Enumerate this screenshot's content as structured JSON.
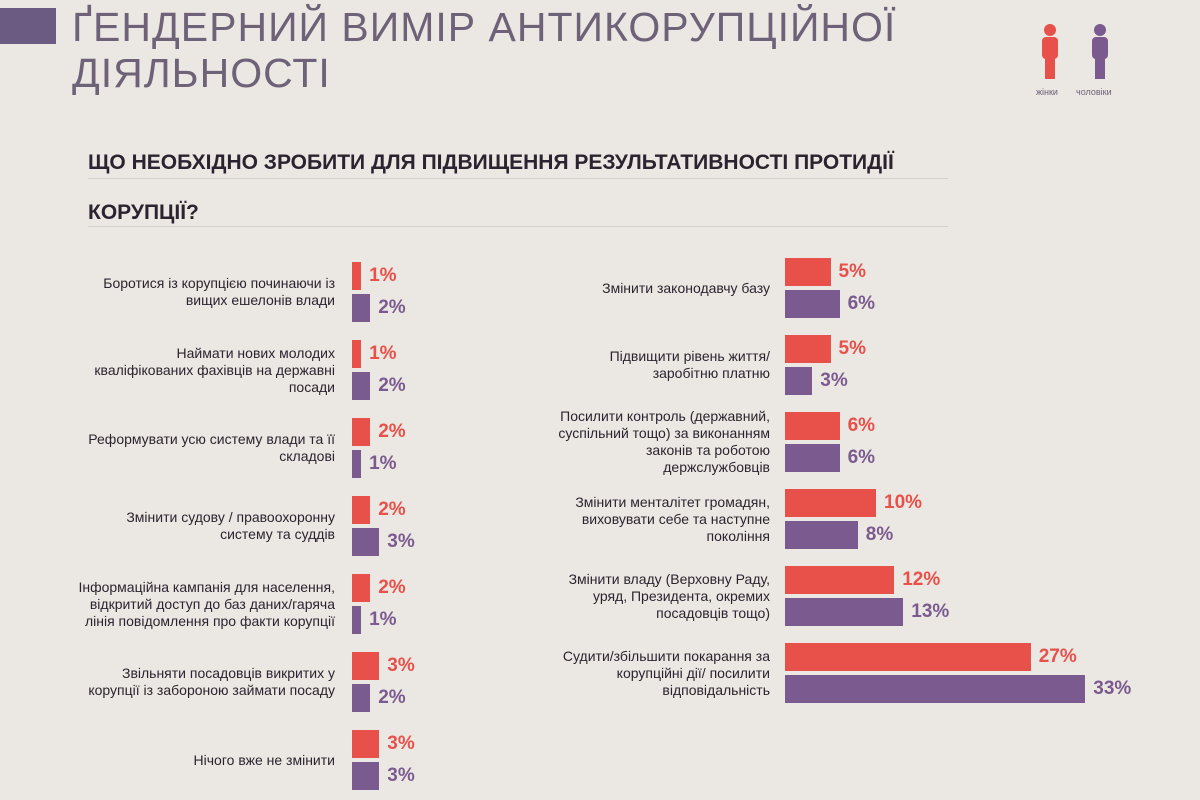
{
  "title": "ҐЕНДЕРНИЙ ВИМІР АНТИКОРУПЦІЙНОЇ ДІЯЛЬНОСТІ",
  "question": "ЩО НЕОБХІДНО ЗРОБИТИ ДЛЯ ПІДВИЩЕННЯ РЕЗУЛЬТАТИВНОСТІ ПРОТИДІЇ КОРУПЦІЇ?",
  "chart_data": [
    {
      "type": "bar",
      "orientation": "horizontal",
      "categories": [
        "Боротися із корупцією починаючи із вищих ешелонів влади",
        "Наймати нових молодих кваліфікованих фахівців на державні посади",
        "Реформувати усю систему влади та її складові",
        "Змінити судову / правоохоронну систему та суддів",
        "Інформаційна кампанія для населення, відкритий доступ до баз даних/гаряча лінія повідомлення про факти корупції",
        "Звільняти посадовців викритих у корупції із забороною займати посаду",
        "Нічого вже не змінити"
      ],
      "series": [
        {
          "name": "жінки",
          "color": "#e8504a",
          "values": [
            1,
            1,
            2,
            2,
            2,
            3,
            3
          ],
          "value_labels": [
            "1%",
            "1%",
            "2%",
            "2%",
            "2%",
            "3%",
            "3%"
          ]
        },
        {
          "name": "чоловіки",
          "color": "#7b5b8f",
          "values": [
            2,
            2,
            1,
            3,
            1,
            2,
            3
          ],
          "value_labels": [
            "2%",
            "2%",
            "1%",
            "3%",
            "1%",
            "2%",
            "3%"
          ]
        }
      ]
    },
    {
      "type": "bar",
      "orientation": "horizontal",
      "categories": [
        "Змінити законодавчу базу",
        "Підвищити рівень життя/ заробітню платню",
        "Посилити контроль (державний, суспільний тощо) за виконанням законів та роботою держслужбовців",
        "Змінити менталітет громадян, виховувати себе та наступне покоління",
        "Змінити владу (Верховну Раду, уряд, Президента, окремих посадовців тощо)",
        "Судити/збільшити покарання за корупційні дії/ посилити відповідальність"
      ],
      "series": [
        {
          "color": "#e8504a",
          "values": [
            5,
            5,
            6,
            10,
            12,
            27
          ],
          "value_labels": [
            "5%",
            "5%",
            "6%",
            "10%",
            "12%",
            "27%"
          ]
        },
        {
          "color": "#7b5b8f",
          "values": [
            6,
            3,
            6,
            8,
            13,
            33
          ],
          "value_labels": [
            "6%",
            "3%",
            "6%",
            "8%",
            "13%",
            "33%"
          ]
        }
      ]
    }
  ]
}
